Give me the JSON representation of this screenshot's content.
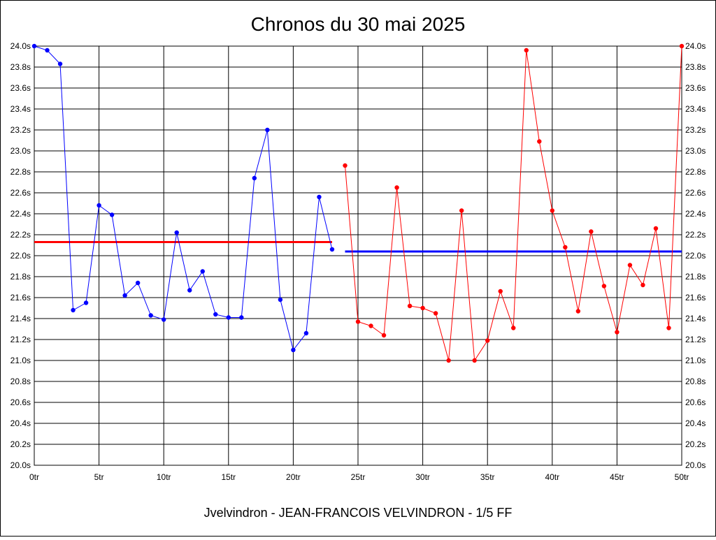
{
  "chart_data": {
    "type": "line",
    "title": "Chronos du 30 mai 2025",
    "footer": "Jvelvindron - JEAN-FRANCOIS VELVINDRON - 1/5 FF",
    "x_ticks": [
      "0tr",
      "5tr",
      "10tr",
      "15tr",
      "20tr",
      "25tr",
      "30tr",
      "35tr",
      "40tr",
      "45tr",
      "50tr"
    ],
    "y_ticks": [
      "20.0s",
      "20.2s",
      "20.4s",
      "20.6s",
      "20.8s",
      "21.0s",
      "21.2s",
      "21.4s",
      "21.6s",
      "21.8s",
      "22.0s",
      "22.2s",
      "22.4s",
      "22.6s",
      "22.8s",
      "23.0s",
      "23.2s",
      "23.4s",
      "23.6s",
      "23.8s",
      "24.0s"
    ],
    "xlim": [
      0,
      50
    ],
    "ylim": [
      20.0,
      24.0
    ],
    "grid": true,
    "series": [
      {
        "color": "#0000ff",
        "x": [
          0,
          1,
          2,
          3,
          4,
          5,
          6,
          7,
          8,
          9,
          10,
          11,
          12,
          13,
          14,
          15,
          16,
          17,
          18,
          19,
          20,
          21,
          22,
          23
        ],
        "values": [
          24.0,
          23.96,
          23.83,
          21.48,
          21.55,
          22.48,
          22.39,
          21.62,
          21.74,
          21.43,
          21.39,
          22.22,
          21.67,
          21.85,
          21.44,
          21.41,
          21.41,
          22.74,
          23.2,
          21.58,
          21.1,
          21.26,
          22.56,
          22.06
        ]
      },
      {
        "color": "#ff0000",
        "x": [
          24,
          25,
          26,
          27,
          28,
          29,
          30,
          31,
          32,
          33,
          34,
          35,
          36,
          37,
          38,
          39,
          40,
          41,
          42,
          43,
          44,
          45,
          46,
          47,
          48,
          49,
          50
        ],
        "values": [
          22.86,
          21.37,
          21.33,
          21.24,
          22.65,
          21.52,
          21.5,
          21.45,
          21.0,
          22.43,
          21.0,
          21.19,
          21.66,
          21.31,
          23.96,
          23.09,
          22.43,
          22.08,
          21.47,
          22.23,
          21.71,
          21.27,
          21.91,
          21.72,
          22.26,
          21.31,
          24.0
        ]
      }
    ],
    "reference_lines": [
      {
        "color": "#ff0000",
        "value": 22.13,
        "x_start": 0,
        "x_end": 23
      },
      {
        "color": "#0000ff",
        "value": 22.04,
        "x_start": 24,
        "x_end": 50
      }
    ]
  }
}
